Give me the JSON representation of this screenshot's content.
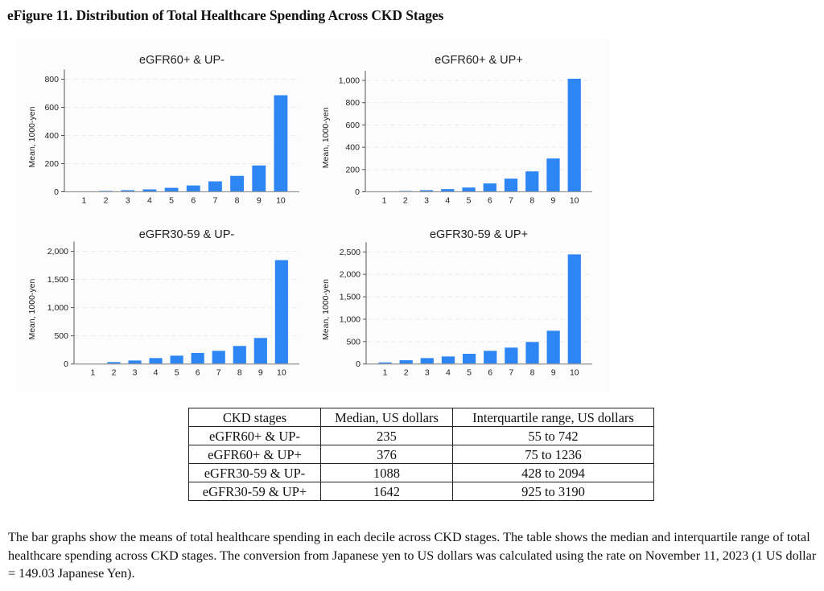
{
  "figure": {
    "title": "eFigure 11. Distribution of Total Healthcare Spending Across CKD Stages"
  },
  "chart_data": [
    {
      "type": "bar",
      "title": "eGFR60+ & UP-",
      "xlabel": "",
      "ylabel": "Mean, 1000-yen",
      "categories": [
        "1",
        "2",
        "3",
        "4",
        "5",
        "6",
        "7",
        "8",
        "9",
        "10"
      ],
      "values": [
        1,
        6,
        11,
        17,
        28,
        45,
        74,
        113,
        187,
        686
      ],
      "ylim": [
        0,
        800
      ],
      "yticks": [
        0,
        200,
        400,
        600,
        800
      ],
      "ytick_labels": [
        "0",
        "200",
        "400",
        "600",
        "800"
      ],
      "grid": true,
      "bar_color": "#2e86f5"
    },
    {
      "type": "bar",
      "title": "eGFR60+ & UP+",
      "xlabel": "",
      "ylabel": "Mean, 1000-yen",
      "categories": [
        "1",
        "2",
        "3",
        "4",
        "5",
        "6",
        "7",
        "8",
        "9",
        "10"
      ],
      "values": [
        1,
        7,
        14,
        24,
        38,
        75,
        118,
        183,
        299,
        1015
      ],
      "ylim": [
        0,
        1000
      ],
      "yticks": [
        0,
        200,
        400,
        600,
        800,
        1000
      ],
      "ytick_labels": [
        "0",
        "200",
        "400",
        "600",
        "800",
        "1,000"
      ],
      "grid": true,
      "bar_color": "#2e86f5"
    },
    {
      "type": "bar",
      "title": "eGFR30-59 & UP-",
      "xlabel": "",
      "ylabel": "Mean, 1000-yen",
      "categories": [
        "1",
        "2",
        "3",
        "4",
        "5",
        "6",
        "7",
        "8",
        "9",
        "10"
      ],
      "values": [
        10,
        34,
        62,
        105,
        148,
        196,
        234,
        320,
        462,
        1843
      ],
      "ylim": [
        0,
        2000
      ],
      "yticks": [
        0,
        500,
        1000,
        1500,
        2000
      ],
      "ytick_labels": [
        "0",
        "500",
        "1,000",
        "1,500",
        "2,000"
      ],
      "grid": true,
      "bar_color": "#2e86f5"
    },
    {
      "type": "bar",
      "title": "eGFR30-59 & UP+",
      "xlabel": "",
      "ylabel": "Mean, 1000-yen",
      "categories": [
        "1",
        "2",
        "3",
        "4",
        "5",
        "6",
        "7",
        "8",
        "9",
        "10"
      ],
      "values": [
        36,
        84,
        132,
        168,
        228,
        294,
        366,
        491,
        742,
        2445
      ],
      "ylim": [
        0,
        2500
      ],
      "yticks": [
        0,
        500,
        1000,
        1500,
        2000,
        2500
      ],
      "ytick_labels": [
        "0",
        "500",
        "1,000",
        "1,500",
        "2,000",
        "2,500"
      ],
      "grid": true,
      "bar_color": "#2e86f5"
    }
  ],
  "table": {
    "headers": [
      "CKD stages",
      "Median, US dollars",
      "Interquartile range, US dollars"
    ],
    "rows": [
      [
        "eGFR60+ & UP-",
        "235",
        "55 to 742"
      ],
      [
        "eGFR60+ & UP+",
        "376",
        "75 to 1236"
      ],
      [
        "eGFR30-59 & UP-",
        "1088",
        "428 to 2094"
      ],
      [
        "eGFR30-59 & UP+",
        "1642",
        "925 to 3190"
      ]
    ]
  },
  "caption": "The bar graphs show the means of total healthcare spending in each decile across CKD stages. The table shows the median and interquartile range of total healthcare spending across CKD stages. The conversion from Japanese yen to US dollars was calculated using the rate on November 11, 2023 (1 US dollar = 149.03 Japanese Yen)."
}
